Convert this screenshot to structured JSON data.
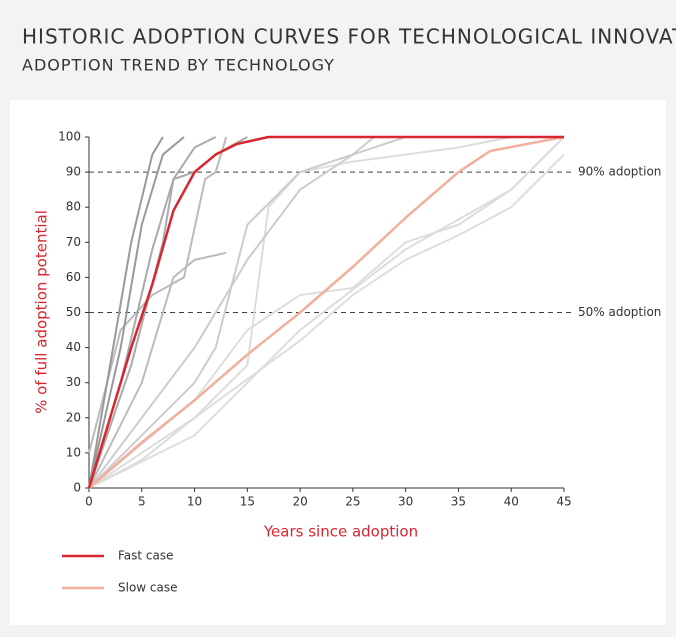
{
  "chart_data": {
    "type": "line",
    "title": "HISTORIC ADOPTION CURVES FOR TECHNOLOGICAL INNOVATIONS",
    "subtitle": "ADOPTION TREND BY TECHNOLOGY",
    "x_label": "Years since adoption",
    "y_label": "% of full adoption potential",
    "xlim": [
      0,
      45
    ],
    "xticks": [
      0,
      5,
      10,
      15,
      20,
      25,
      30,
      35,
      40,
      45
    ],
    "ylim": [
      0,
      100
    ],
    "yticks": [
      0,
      10,
      20,
      30,
      40,
      50,
      60,
      70,
      80,
      90,
      100
    ],
    "reference_lines": [
      {
        "value": 90,
        "label": "90% adoption"
      },
      {
        "value": 50,
        "label": "50% adoption"
      }
    ],
    "series": [
      {
        "color": "#dddddd",
        "x": [
          0,
          10,
          20,
          30,
          40,
          45
        ],
        "values": [
          0,
          15,
          45,
          68,
          85,
          100
        ]
      },
      {
        "color": "#dddddd",
        "x": [
          0,
          10,
          20,
          25,
          30,
          35,
          40,
          45
        ],
        "values": [
          0,
          20,
          42,
          55,
          65,
          72,
          80,
          95
        ]
      },
      {
        "color": "#dddddd",
        "x": [
          0,
          10,
          15,
          20,
          25,
          30,
          35,
          40,
          45
        ],
        "values": [
          0,
          25,
          45,
          55,
          57,
          70,
          75,
          85,
          100
        ]
      },
      {
        "color": "#dddddd",
        "x": [
          0,
          5,
          10,
          15,
          17,
          20,
          25,
          30,
          35,
          40
        ],
        "values": [
          0,
          8,
          20,
          35,
          80,
          90,
          93,
          95,
          97,
          100
        ]
      },
      {
        "color": "#cccccc",
        "x": [
          0,
          5,
          10,
          12,
          15,
          20,
          25,
          30
        ],
        "values": [
          0,
          15,
          30,
          40,
          75,
          90,
          95,
          100
        ]
      },
      {
        "color": "#cccccc",
        "x": [
          0,
          5,
          10,
          15,
          20,
          25,
          27
        ],
        "values": [
          0,
          20,
          40,
          65,
          85,
          95,
          100
        ]
      },
      {
        "color": "#bbbbbb",
        "x": [
          0,
          3,
          6,
          9,
          11,
          12,
          13
        ],
        "values": [
          10,
          45,
          55,
          60,
          88,
          90,
          100
        ]
      },
      {
        "color": "#bbbbbb",
        "x": [
          0,
          5,
          8,
          10,
          13
        ],
        "values": [
          0,
          30,
          60,
          65,
          67
        ]
      },
      {
        "color": "#aaaaaa",
        "x": [
          0,
          4,
          7,
          8,
          10,
          12,
          15
        ],
        "values": [
          0,
          35,
          70,
          88,
          90,
          95,
          100
        ]
      },
      {
        "color": "#aaaaaa",
        "x": [
          0,
          3,
          6,
          8,
          10,
          12
        ],
        "values": [
          0,
          30,
          68,
          88,
          97,
          100
        ]
      },
      {
        "color": "#999999",
        "x": [
          0,
          3,
          5,
          7,
          9
        ],
        "values": [
          0,
          40,
          75,
          95,
          100
        ]
      },
      {
        "color": "#999999",
        "x": [
          0,
          2,
          4,
          6,
          7
        ],
        "values": [
          0,
          35,
          70,
          95,
          100
        ]
      },
      {
        "name": "Slow case",
        "color": "#f2b09a",
        "x": [
          0,
          5,
          10,
          15,
          20,
          25,
          30,
          35,
          38,
          45
        ],
        "values": [
          0,
          13,
          25,
          38,
          50,
          63,
          77,
          90,
          96,
          100
        ]
      },
      {
        "name": "Fast case",
        "color": "#d7262e",
        "x": [
          0,
          2,
          4,
          6,
          8,
          10,
          12,
          14,
          17,
          45
        ],
        "values": [
          0,
          20,
          40,
          58,
          79,
          90,
          95,
          98,
          100,
          100
        ]
      }
    ]
  }
}
